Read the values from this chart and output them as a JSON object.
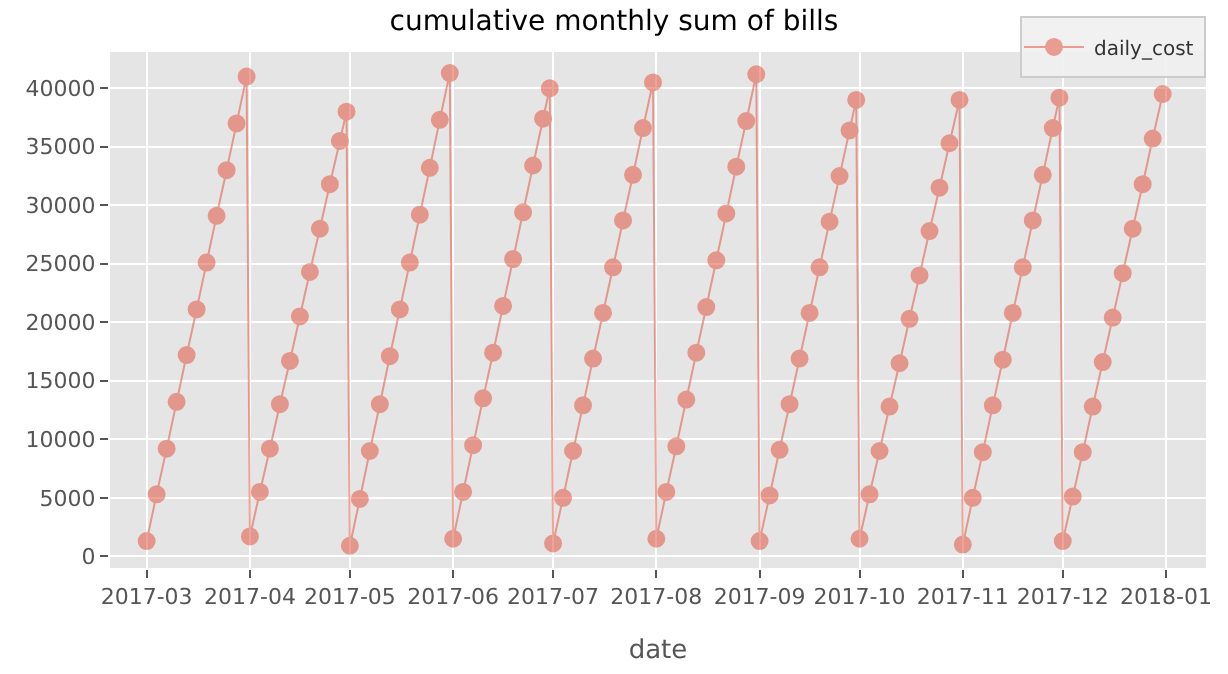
{
  "chart_data": {
    "type": "line",
    "title": "cumulative monthly sum of bills",
    "xlabel": "date",
    "x": [
      "2017-03-01",
      "2017-03-04",
      "2017-03-07",
      "2017-03-10",
      "2017-03-13",
      "2017-03-16",
      "2017-03-19",
      "2017-03-22",
      "2017-03-25",
      "2017-03-28",
      "2017-03-31",
      "2017-04-01",
      "2017-04-04",
      "2017-04-07",
      "2017-04-10",
      "2017-04-13",
      "2017-04-16",
      "2017-04-19",
      "2017-04-22",
      "2017-04-25",
      "2017-04-28",
      "2017-04-30",
      "2017-05-01",
      "2017-05-04",
      "2017-05-07",
      "2017-05-10",
      "2017-05-13",
      "2017-05-16",
      "2017-05-19",
      "2017-05-22",
      "2017-05-25",
      "2017-05-28",
      "2017-05-31",
      "2017-06-01",
      "2017-06-04",
      "2017-06-07",
      "2017-06-10",
      "2017-06-13",
      "2017-06-16",
      "2017-06-19",
      "2017-06-22",
      "2017-06-25",
      "2017-06-28",
      "2017-06-30",
      "2017-07-01",
      "2017-07-04",
      "2017-07-07",
      "2017-07-10",
      "2017-07-13",
      "2017-07-16",
      "2017-07-19",
      "2017-07-22",
      "2017-07-25",
      "2017-07-28",
      "2017-07-31",
      "2017-08-01",
      "2017-08-04",
      "2017-08-07",
      "2017-08-10",
      "2017-08-13",
      "2017-08-16",
      "2017-08-19",
      "2017-08-22",
      "2017-08-25",
      "2017-08-28",
      "2017-08-31",
      "2017-09-01",
      "2017-09-04",
      "2017-09-07",
      "2017-09-10",
      "2017-09-13",
      "2017-09-16",
      "2017-09-19",
      "2017-09-22",
      "2017-09-25",
      "2017-09-28",
      "2017-09-30",
      "2017-10-01",
      "2017-10-04",
      "2017-10-07",
      "2017-10-10",
      "2017-10-13",
      "2017-10-16",
      "2017-10-19",
      "2017-10-22",
      "2017-10-25",
      "2017-10-28",
      "2017-10-31",
      "2017-11-01",
      "2017-11-04",
      "2017-11-07",
      "2017-11-10",
      "2017-11-13",
      "2017-11-16",
      "2017-11-19",
      "2017-11-22",
      "2017-11-25",
      "2017-11-28",
      "2017-11-30",
      "2017-12-01",
      "2017-12-04",
      "2017-12-07",
      "2017-12-10",
      "2017-12-13",
      "2017-12-16",
      "2017-12-19",
      "2017-12-22",
      "2017-12-25",
      "2017-12-28",
      "2017-12-31"
    ],
    "series": [
      {
        "name": "daily_cost",
        "color": "#e24a33",
        "values": [
          1300,
          5300,
          9200,
          13200,
          17200,
          21100,
          25100,
          29100,
          33000,
          37000,
          41000,
          1700,
          5500,
          9200,
          13000,
          16700,
          20500,
          24300,
          28000,
          31800,
          35500,
          38000,
          900,
          4900,
          9000,
          13000,
          17100,
          21100,
          25100,
          29200,
          33200,
          37300,
          41300,
          1500,
          5500,
          9500,
          13500,
          17400,
          21400,
          25400,
          29400,
          33400,
          37400,
          40000,
          1100,
          5000,
          9000,
          12900,
          16900,
          20800,
          24700,
          28700,
          32600,
          36600,
          40500,
          1500,
          5500,
          9400,
          13400,
          17400,
          21300,
          25300,
          29300,
          33300,
          37200,
          41200,
          1300,
          5200,
          9100,
          13000,
          16900,
          20800,
          24700,
          28600,
          32500,
          36400,
          39000,
          1500,
          5300,
          9000,
          12800,
          16500,
          20300,
          24000,
          27800,
          31500,
          35300,
          39000,
          1000,
          5000,
          8900,
          12900,
          16800,
          20800,
          24700,
          28700,
          32600,
          36600,
          39200,
          1300,
          5100,
          8900,
          12800,
          16600,
          20400,
          24200,
          28000,
          31800,
          35700,
          39500
        ]
      }
    ],
    "xlim": [
      "2017-02-18",
      "2018-01-13"
    ],
    "xticks": [
      {
        "value": "2017-03-01",
        "label": "2017-03"
      },
      {
        "value": "2017-04-01",
        "label": "2017-04"
      },
      {
        "value": "2017-05-01",
        "label": "2017-05"
      },
      {
        "value": "2017-06-01",
        "label": "2017-06"
      },
      {
        "value": "2017-07-01",
        "label": "2017-07"
      },
      {
        "value": "2017-08-01",
        "label": "2017-08"
      },
      {
        "value": "2017-09-01",
        "label": "2017-09"
      },
      {
        "value": "2017-10-01",
        "label": "2017-10"
      },
      {
        "value": "2017-11-01",
        "label": "2017-11"
      },
      {
        "value": "2017-12-01",
        "label": "2017-12"
      },
      {
        "value": "2018-01-01",
        "label": "2018-01"
      }
    ],
    "ylim": [
      -1000,
      43100
    ],
    "yticks": [
      0,
      5000,
      10000,
      15000,
      20000,
      25000,
      30000,
      35000,
      40000
    ],
    "grid": true,
    "legend": "top right",
    "marker": "circle",
    "line_style": "solid"
  }
}
